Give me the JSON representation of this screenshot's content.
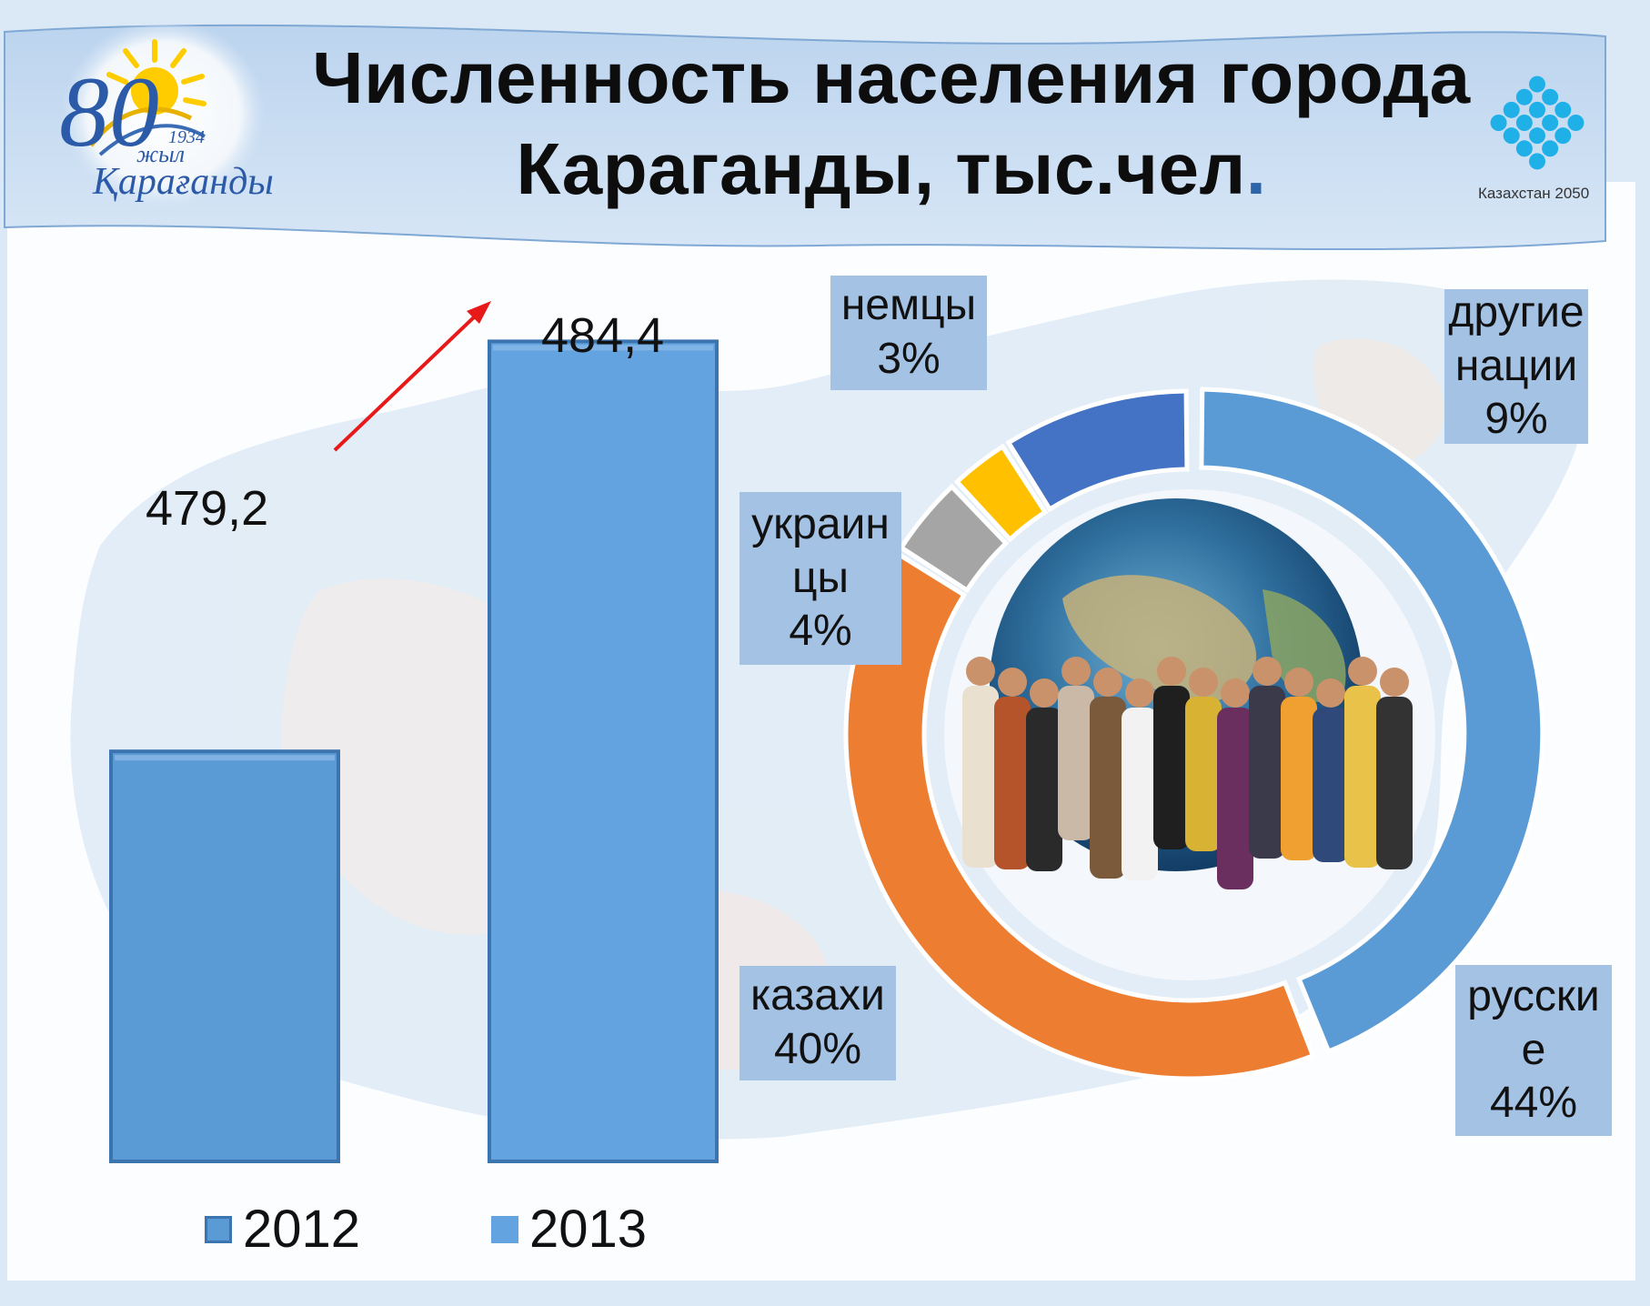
{
  "title": {
    "line1": "Численность населения города",
    "line2": "Караганды, тыс.чел",
    "dot": "."
  },
  "logo_left": {
    "number": "80",
    "year": "1934",
    "word1": "жыл",
    "word2": "Қарағанды"
  },
  "logo_right": {
    "caption": "Казахстан 2050"
  },
  "colors": {
    "bar": "#5b9bd5",
    "bar_2013": "#62a3e0",
    "arrow": "#e81919",
    "donut_russians": "#5b9bd5",
    "donut_kazakhs": "#ed7d31",
    "donut_ukrainians": "#a5a5a5",
    "donut_germans": "#ffc000",
    "donut_others": "#4472c4",
    "label_bg": "#a4c2e4"
  },
  "chart_data": [
    {
      "type": "bar",
      "title": "",
      "categories": [
        "2012",
        "2013"
      ],
      "values": [
        479.2,
        484.4
      ],
      "value_labels": [
        "479,2",
        "484,4"
      ],
      "legend": [
        "2012",
        "2013"
      ],
      "legend_position": "bottom",
      "grid": false,
      "annotation": "arrow from 2012 bar to 2013 bar"
    },
    {
      "type": "pie",
      "donut": true,
      "slices": [
        {
          "name": "русские",
          "value": 44,
          "label_lines": [
            "русски",
            "е",
            "44%"
          ]
        },
        {
          "name": "казахи",
          "value": 40,
          "label_lines": [
            "казахи",
            "40%"
          ]
        },
        {
          "name": "украинцы",
          "value": 4,
          "label_lines": [
            "украин",
            "цы",
            "4%"
          ]
        },
        {
          "name": "немцы",
          "value": 3,
          "label_lines": [
            "немцы",
            "3%"
          ]
        },
        {
          "name": "другие нации",
          "value": 9,
          "label_lines": [
            "другие",
            "нации",
            "9%"
          ]
        }
      ]
    }
  ]
}
